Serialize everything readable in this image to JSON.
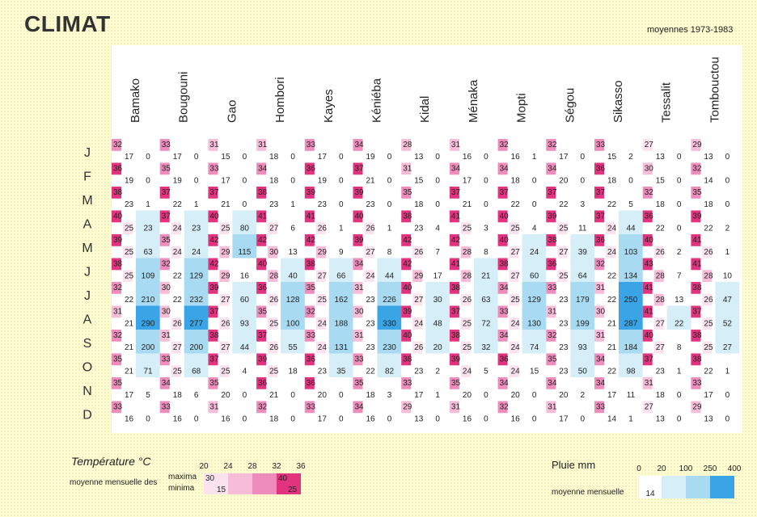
{
  "title": "CLIMAT",
  "subtitle": "moyennes 1973-1983",
  "legend_temperature": {
    "title": "Température °C",
    "caption": "moyenne mensuelle des",
    "maxima_label": "maxima",
    "minima_label": "minima",
    "scale": [
      "20",
      "24",
      "28",
      "32",
      "36"
    ],
    "sample_max": [
      30,
      40
    ],
    "sample_min": [
      15,
      25
    ]
  },
  "legend_rain": {
    "title": "Pluie mm",
    "caption": "moyenne mensuelle",
    "scale": [
      "0",
      "20",
      "100",
      "250",
      "400"
    ],
    "sample": "14"
  },
  "colors": {
    "t_20_24": "#ffffff",
    "t_24_28": "#fbe2ef",
    "t_28_32": "#f6bcd8",
    "t_32_36": "#ee8cbc",
    "t_36_plus": "#e2337f",
    "r_0_20": "#ffffff",
    "r_20_100": "#d6eef8",
    "r_100_250": "#a8dbf2",
    "r_250_400": "#3aa5e6"
  },
  "chart_data": {
    "type": "heatmap",
    "months": [
      "J",
      "F",
      "M",
      "A",
      "M",
      "J",
      "J",
      "A",
      "S",
      "O",
      "N",
      "D"
    ],
    "stations": [
      {
        "name": "Bamako",
        "tmax": [
          32,
          36,
          38,
          40,
          39,
          38,
          32,
          31,
          32,
          35,
          35,
          33
        ],
        "tmin": [
          17,
          19,
          23,
          25,
          25,
          25,
          22,
          21,
          21,
          21,
          17,
          16
        ],
        "rain": [
          0,
          0,
          1,
          23,
          63,
          109,
          210,
          290,
          200,
          71,
          5,
          0
        ]
      },
      {
        "name": "Bougouni",
        "tmax": [
          33,
          35,
          37,
          37,
          35,
          32,
          30,
          30,
          31,
          33,
          34,
          33
        ],
        "tmin": [
          17,
          19,
          22,
          24,
          24,
          22,
          22,
          26,
          27,
          25,
          18,
          16
        ],
        "rain": [
          0,
          0,
          1,
          23,
          24,
          129,
          232,
          277,
          200,
          68,
          6,
          0
        ]
      },
      {
        "name": "Gao",
        "tmax": [
          31,
          33,
          37,
          40,
          42,
          42,
          39,
          37,
          38,
          37,
          35,
          31
        ],
        "tmin": [
          15,
          17,
          21,
          25,
          29,
          29,
          27,
          26,
          27,
          25,
          20,
          16
        ],
        "rain": [
          0,
          0,
          0,
          80,
          115,
          16,
          60,
          93,
          44,
          4,
          0,
          0
        ]
      },
      {
        "name": "Hombori",
        "tmax": [
          31,
          34,
          38,
          41,
          42,
          40,
          36,
          35,
          37,
          39,
          36,
          32
        ],
        "tmin": [
          18,
          18,
          23,
          27,
          30,
          28,
          26,
          25,
          26,
          25,
          21,
          18
        ],
        "rain": [
          0,
          0,
          1,
          6,
          13,
          40,
          128,
          100,
          55,
          18,
          0,
          0
        ]
      },
      {
        "name": "Kayes",
        "tmax": [
          33,
          36,
          39,
          41,
          42,
          38,
          35,
          32,
          33,
          36,
          36,
          33
        ],
        "tmin": [
          17,
          19,
          23,
          26,
          29,
          27,
          25,
          24,
          24,
          23,
          20,
          17
        ],
        "rain": [
          0,
          0,
          0,
          1,
          9,
          66,
          162,
          188,
          131,
          35,
          0,
          0
        ]
      },
      {
        "name": "Kéniéba",
        "tmax": [
          34,
          37,
          39,
          40,
          39,
          34,
          31,
          30,
          31,
          33,
          35,
          34
        ],
        "tmin": [
          19,
          21,
          23,
          26,
          27,
          24,
          23,
          23,
          23,
          22,
          18,
          16
        ],
        "rain": [
          0,
          0,
          0,
          1,
          8,
          44,
          226,
          330,
          230,
          82,
          3,
          0
        ]
      },
      {
        "name": "Kidal",
        "tmax": [
          28,
          31,
          35,
          38,
          42,
          42,
          40,
          39,
          40,
          38,
          33,
          29
        ],
        "tmin": [
          13,
          15,
          18,
          23,
          26,
          29,
          27,
          24,
          26,
          23,
          17,
          13
        ],
        "rain": [
          0,
          0,
          0,
          4,
          7,
          17,
          30,
          48,
          20,
          2,
          1,
          0
        ]
      },
      {
        "name": "Ménaka",
        "tmax": [
          31,
          34,
          37,
          41,
          42,
          41,
          38,
          37,
          38,
          39,
          35,
          31
        ],
        "tmin": [
          16,
          17,
          21,
          25,
          28,
          28,
          26,
          25,
          25,
          24,
          20,
          16
        ],
        "rain": [
          0,
          0,
          0,
          3,
          8,
          21,
          63,
          72,
          32,
          5,
          0,
          0
        ]
      },
      {
        "name": "Mopti",
        "tmax": [
          32,
          34,
          37,
          40,
          40,
          38,
          34,
          33,
          34,
          36,
          34,
          32
        ],
        "tmin": [
          16,
          18,
          22,
          25,
          27,
          27,
          25,
          24,
          24,
          24,
          20,
          16
        ],
        "rain": [
          1,
          0,
          0,
          4,
          24,
          60,
          129,
          130,
          74,
          15,
          0,
          0
        ]
      },
      {
        "name": "Ségou",
        "tmax": [
          32,
          34,
          37,
          39,
          38,
          36,
          33,
          31,
          32,
          35,
          34,
          31
        ],
        "tmin": [
          17,
          20,
          22,
          25,
          27,
          25,
          23,
          23,
          23,
          23,
          20,
          17
        ],
        "rain": [
          0,
          0,
          3,
          11,
          39,
          64,
          179,
          199,
          93,
          50,
          2,
          0
        ]
      },
      {
        "name": "Sikasso",
        "tmax": [
          33,
          36,
          37,
          37,
          36,
          32,
          31,
          30,
          31,
          34,
          34,
          33
        ],
        "tmin": [
          15,
          18,
          22,
          24,
          24,
          22,
          22,
          21,
          21,
          22,
          17,
          14
        ],
        "rain": [
          2,
          0,
          5,
          44,
          103,
          134,
          250,
          287,
          184,
          98,
          11,
          1
        ]
      },
      {
        "name": "Tessalit",
        "tmax": [
          27,
          30,
          32,
          36,
          40,
          43,
          41,
          41,
          40,
          37,
          31,
          27
        ],
        "tmin": [
          13,
          15,
          18,
          22,
          26,
          28,
          28,
          27,
          27,
          23,
          18,
          13
        ],
        "rain": [
          0,
          0,
          0,
          0,
          2,
          7,
          13,
          22,
          8,
          1,
          0,
          0
        ]
      },
      {
        "name": "Tombouctou",
        "tmax": [
          29,
          32,
          35,
          39,
          41,
          41,
          38,
          37,
          38,
          38,
          33,
          29
        ],
        "tmin": [
          13,
          14,
          18,
          22,
          26,
          28,
          26,
          25,
          25,
          22,
          17,
          13
        ],
        "rain": [
          0,
          0,
          0,
          2,
          1,
          10,
          47,
          52,
          27,
          1,
          0,
          0
        ]
      }
    ]
  }
}
